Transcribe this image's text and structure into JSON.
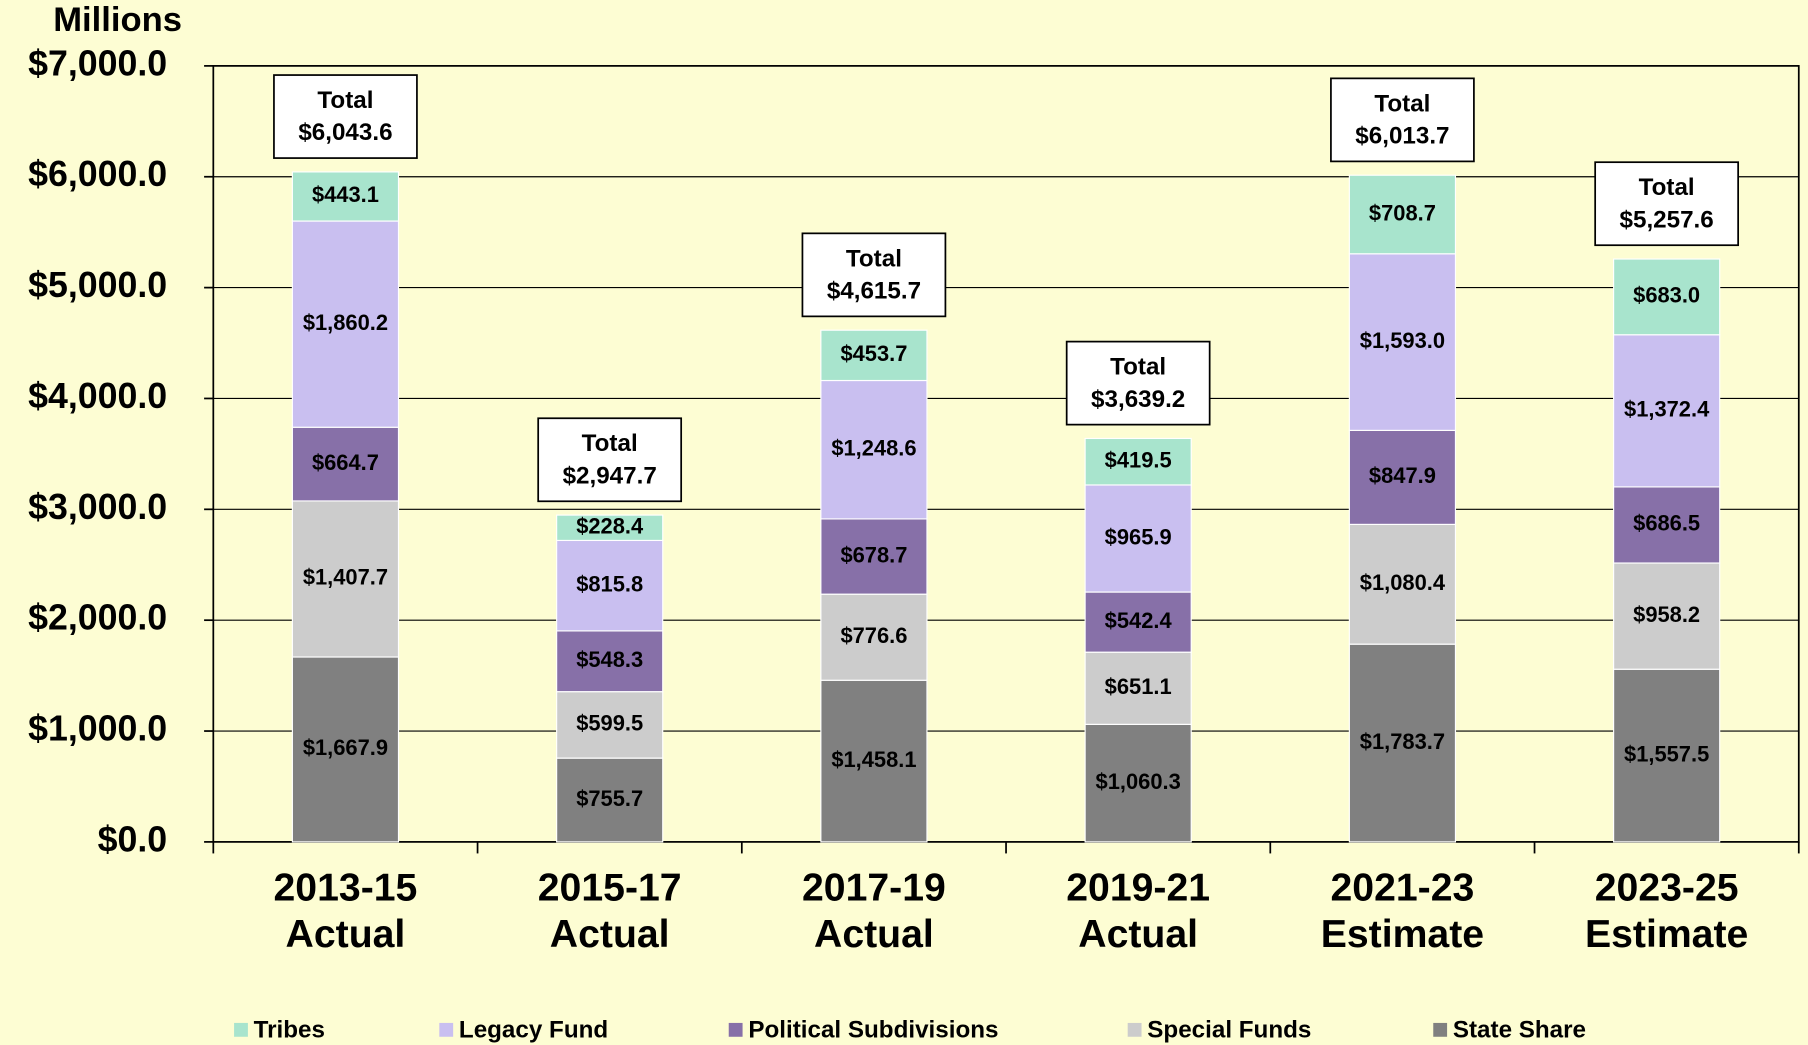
{
  "chart_data": {
    "type": "stacked_bar",
    "y_axis_title": "Millions",
    "categories": [
      [
        "2013-15",
        "Actual"
      ],
      [
        "2015-17",
        "Actual"
      ],
      [
        "2017-19",
        "Actual"
      ],
      [
        "2019-21",
        "Actual"
      ],
      [
        "2021-23",
        "Estimate"
      ],
      [
        "2023-25",
        "Estimate"
      ]
    ],
    "series": [
      {
        "name": "Tribes",
        "color": "#a8e4cd",
        "values": [
          443.1,
          228.4,
          453.7,
          419.5,
          708.7,
          683.0
        ],
        "value_labels": [
          "$443.1",
          "$228.4",
          "$453.7",
          "$419.5",
          "$708.7",
          "$683.0"
        ]
      },
      {
        "name": "Legacy Fund",
        "color": "#c9bff0",
        "values": [
          1860.2,
          815.8,
          1248.6,
          965.9,
          1593.0,
          1372.4
        ],
        "value_labels": [
          "$1,860.2",
          "$815.8",
          "$1,248.6",
          "$965.9",
          "$1,593.0",
          "$1,372.4"
        ]
      },
      {
        "name": "Political Subdivisions",
        "color": "#8770a8",
        "values": [
          664.7,
          548.3,
          678.7,
          542.4,
          847.9,
          686.5
        ],
        "value_labels": [
          "$664.7",
          "$548.3",
          "$678.7",
          "$542.4",
          "$847.9",
          "$686.5"
        ]
      },
      {
        "name": "Special Funds",
        "color": "#cccccc",
        "values": [
          1407.7,
          599.5,
          776.6,
          651.1,
          1080.4,
          958.2
        ],
        "value_labels": [
          "$1,407.7",
          "$599.5",
          "$776.6",
          "$651.1",
          "$1,080.4",
          "$958.2"
        ]
      },
      {
        "name": "State Share",
        "color": "#808080",
        "values": [
          1667.9,
          755.7,
          1458.1,
          1060.3,
          1783.7,
          1557.5
        ],
        "value_labels": [
          "$1,667.9",
          "$755.7",
          "$1,458.1",
          "$1,060.3",
          "$1,783.7",
          "$1,557.5"
        ]
      }
    ],
    "total_title": "Total",
    "totals": [
      6043.6,
      2947.7,
      4615.7,
      3639.2,
      6013.7,
      5257.6
    ],
    "total_labels": [
      "$6,043.6",
      "$2,947.7",
      "$4,615.7",
      "$3,639.2",
      "$6,013.7",
      "$5,257.6"
    ],
    "ylim": [
      0,
      7000
    ],
    "yticks": [
      {
        "value": 0,
        "label": "$0.0"
      },
      {
        "value": 1000,
        "label": "$1,000.0"
      },
      {
        "value": 2000,
        "label": "$2,000.0"
      },
      {
        "value": 3000,
        "label": "$3,000.0"
      },
      {
        "value": 4000,
        "label": "$4,000.0"
      },
      {
        "value": 5000,
        "label": "$5,000.0"
      },
      {
        "value": 6000,
        "label": "$6,000.0"
      },
      {
        "value": 7000,
        "label": "$7,000.0"
      }
    ],
    "grid": true,
    "legend": "bottom"
  }
}
